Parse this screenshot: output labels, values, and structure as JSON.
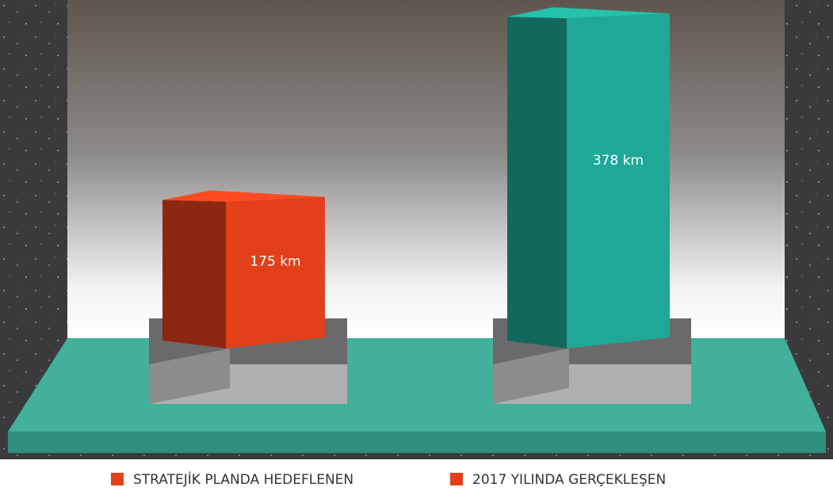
{
  "chart_data": {
    "type": "bar3d",
    "series": [
      {
        "name": "STRATEJİK PLANDA HEDEFLENEN",
        "color": "#e2401b",
        "values": [
          175
        ],
        "value_labels": [
          "175 km"
        ]
      },
      {
        "name": "2017 YILINDA GERÇEKLEŞEN",
        "color": "#1fa895",
        "values": [
          378
        ],
        "value_labels": [
          "378 km"
        ]
      }
    ],
    "legend_color": "#e2401b"
  }
}
